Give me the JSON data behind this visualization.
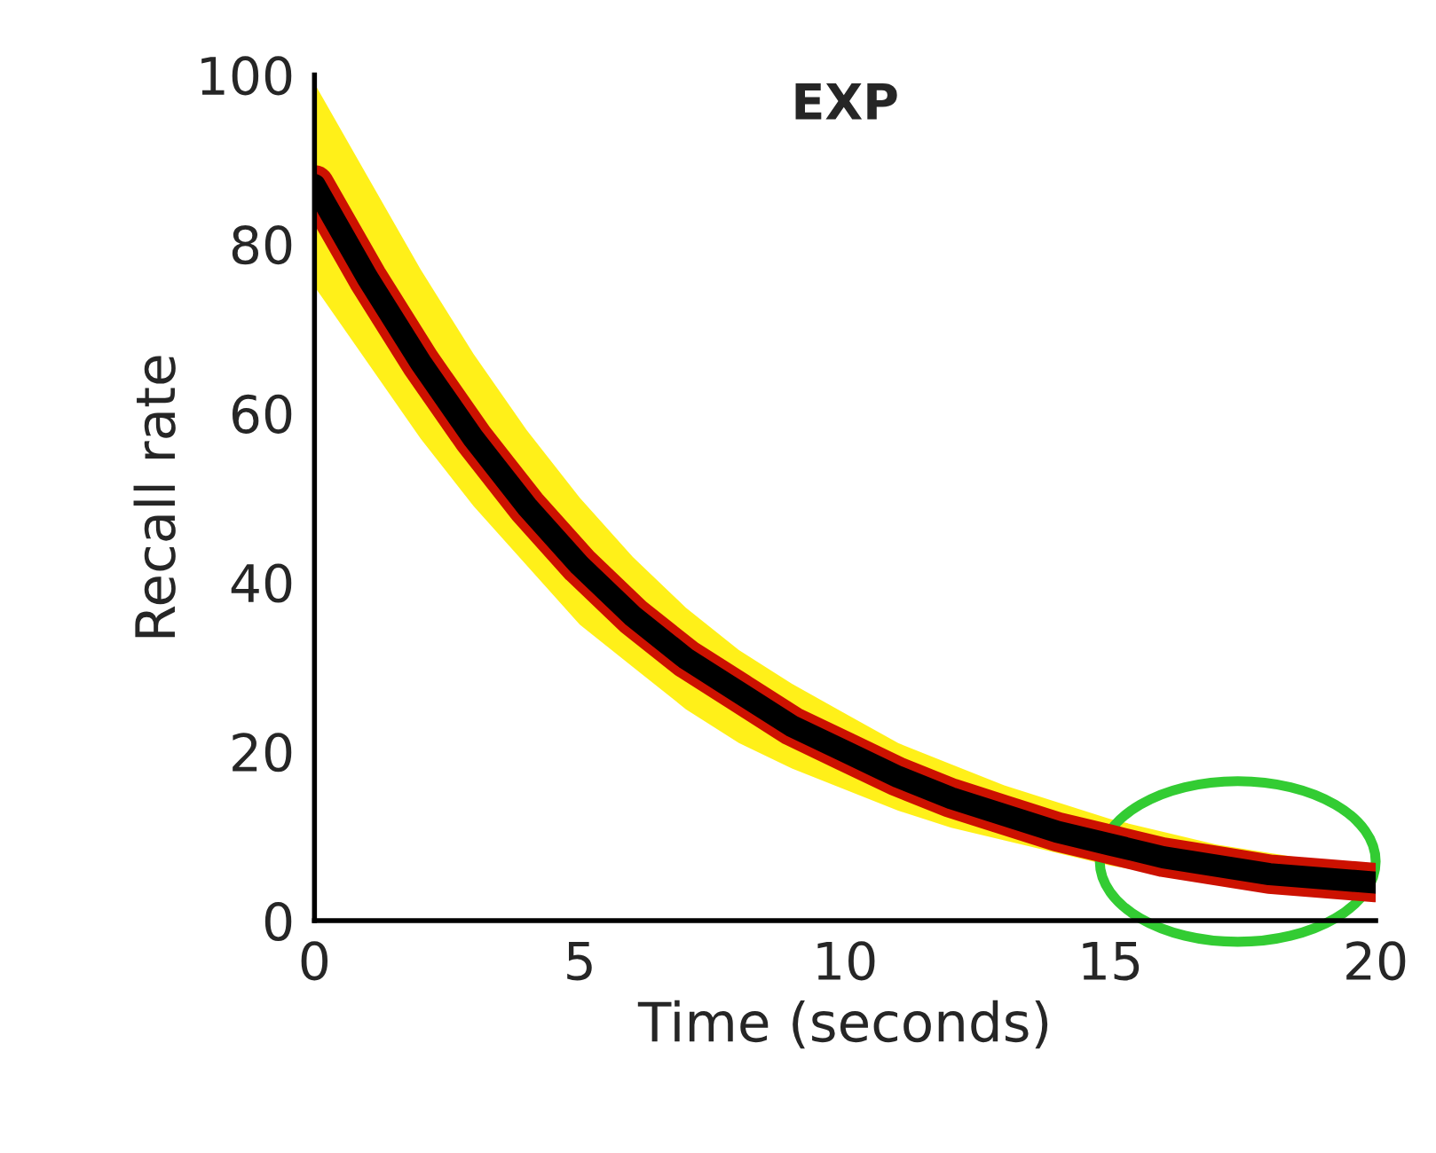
{
  "chart_data": {
    "type": "line",
    "title": "EXP",
    "xlabel": "Time (seconds)",
    "ylabel": "Recall rate",
    "x": [
      0,
      1,
      2,
      3,
      4,
      5,
      6,
      7,
      8,
      9,
      10,
      11,
      12,
      13,
      14,
      15,
      16,
      17,
      18,
      19,
      20
    ],
    "series": [
      {
        "color": "#000000",
        "values": [
          87,
          76,
          66,
          57,
          49,
          42,
          36,
          31,
          27,
          23,
          20,
          17,
          14.5,
          12.5,
          10.5,
          9,
          7.5,
          6.5,
          5.5,
          5,
          4.5
        ],
        "lower": [
          75,
          66,
          57,
          49,
          42,
          35,
          30,
          25,
          21,
          18,
          15.5,
          13,
          11,
          9.5,
          8,
          6.5,
          5.5,
          4.5,
          4,
          3.5,
          3
        ],
        "upper": [
          99,
          88,
          77,
          67,
          58,
          50,
          43,
          37,
          32,
          28,
          24.5,
          21,
          18.5,
          16,
          14,
          12,
          10.5,
          9,
          8,
          7,
          6.5
        ]
      }
    ],
    "xlim": [
      0,
      20
    ],
    "ylim": [
      0,
      100
    ],
    "xticks": [
      0,
      5,
      10,
      15,
      20
    ],
    "yticks": [
      0,
      20,
      40,
      60,
      80,
      100
    ],
    "grid": false,
    "legend": false,
    "marker": "none",
    "line_style": "solid"
  }
}
